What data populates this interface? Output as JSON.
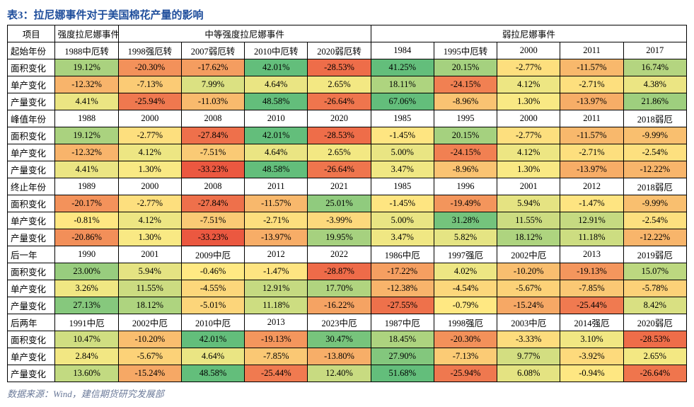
{
  "title": "表3：拉尼娜事件对于美国棉花产量的影响",
  "source": "数据来源：Wind，建信期货研究发展部",
  "header_row1": {
    "c0": "项目",
    "c1": "强度拉尼娜事件",
    "c2": "中等强度拉尼娜事件",
    "c3": "弱拉尼娜事件"
  },
  "row_labels": [
    "起始年份",
    "面积变化",
    "单产变化",
    "产量变化",
    "峰值年份",
    "面积变化",
    "单产变化",
    "产量变化",
    "终止年份",
    "面积变化",
    "单产变化",
    "产量变化",
    "后一年",
    "面积变化",
    "单产变化",
    "产量变化",
    "后两年",
    "面积变化",
    "单产变化",
    "产量变化"
  ],
  "columns": 10,
  "data": [
    [
      "1988中厄转",
      "1998强厄转",
      "2007弱厄转",
      "2010中厄转",
      "2020弱厄转",
      "1984",
      "1995中厄转",
      "2000",
      "2011",
      "2017"
    ],
    [
      "19.12%",
      "-20.30%",
      "-17.62%",
      "42.01%",
      "-28.53%",
      "41.25%",
      "20.15%",
      "-2.77%",
      "-11.57%",
      "16.74%"
    ],
    [
      "-12.32%",
      "-7.13%",
      "7.99%",
      "4.64%",
      "2.65%",
      "18.11%",
      "-24.15%",
      "4.12%",
      "-2.71%",
      "4.38%"
    ],
    [
      "4.41%",
      "-25.94%",
      "-11.03%",
      "48.58%",
      "-26.64%",
      "67.06%",
      "-8.96%",
      "1.30%",
      "-13.97%",
      "21.86%"
    ],
    [
      "1988",
      "2000",
      "2008",
      "2010",
      "2020",
      "1985",
      "1995",
      "2000",
      "2011",
      "2018弱厄"
    ],
    [
      "19.12%",
      "-2.77%",
      "-27.84%",
      "42.01%",
      "-28.53%",
      "-1.45%",
      "20.15%",
      "-2.77%",
      "-11.57%",
      "-9.99%"
    ],
    [
      "-12.32%",
      "4.12%",
      "-7.51%",
      "4.64%",
      "2.65%",
      "5.00%",
      "-24.15%",
      "4.12%",
      "-2.71%",
      "-2.54%"
    ],
    [
      "4.41%",
      "1.30%",
      "-33.23%",
      "48.58%",
      "-26.64%",
      "3.47%",
      "-8.96%",
      "1.30%",
      "-13.97%",
      "-12.22%"
    ],
    [
      "1989",
      "2000",
      "2008",
      "2011",
      "2021",
      "1985",
      "1996",
      "2001",
      "2012",
      "2018弱厄"
    ],
    [
      "-20.17%",
      "-2.77%",
      "-27.84%",
      "-11.57%",
      "25.01%",
      "-1.45%",
      "-19.49%",
      "5.94%",
      "-1.47%",
      "-9.99%"
    ],
    [
      "-0.81%",
      "4.12%",
      "-7.51%",
      "-2.71%",
      "-3.99%",
      "5.00%",
      "31.28%",
      "11.55%",
      "12.91%",
      "-2.54%"
    ],
    [
      "-20.86%",
      "1.30%",
      "-33.23%",
      "-13.97%",
      "19.95%",
      "3.47%",
      "5.82%",
      "18.12%",
      "11.18%",
      "-12.22%"
    ],
    [
      "1990",
      "2001",
      "2009中厄",
      "2012",
      "2022",
      "1986中厄",
      "1997强厄",
      "2002中厄",
      "2013",
      "2019弱厄"
    ],
    [
      "23.00%",
      "5.94%",
      "-0.46%",
      "-1.47%",
      "-28.87%",
      "-17.22%",
      "4.02%",
      "-10.20%",
      "-19.13%",
      "15.07%"
    ],
    [
      "3.26%",
      "11.55%",
      "-4.55%",
      "12.91%",
      "17.70%",
      "-12.38%",
      "-4.54%",
      "-5.67%",
      "-7.85%",
      "-5.78%"
    ],
    [
      "27.13%",
      "18.12%",
      "-5.01%",
      "11.18%",
      "-16.22%",
      "-27.55%",
      "-0.79%",
      "-15.24%",
      "-25.44%",
      "8.42%"
    ],
    [
      "1991中厄",
      "2002中厄",
      "2010中厄",
      "2013",
      "2023中厄",
      "1987中厄",
      "1998强厄",
      "2003中厄",
      "2014强厄",
      "2020弱厄"
    ],
    [
      "10.47%",
      "-10.20%",
      "42.01%",
      "-19.13%",
      "30.47%",
      "18.45%",
      "-20.30%",
      "-3.33%",
      "3.10%",
      "-28.53%"
    ],
    [
      "2.84%",
      "-5.67%",
      "4.64%",
      "-7.85%",
      "-13.80%",
      "27.90%",
      "-7.13%",
      "9.77%",
      "-3.92%",
      "2.65%"
    ],
    [
      "13.60%",
      "-15.24%",
      "48.58%",
      "-25.44%",
      "12.40%",
      "51.68%",
      "-25.94%",
      "6.08%",
      "-0.94%",
      "-26.64%"
    ]
  ],
  "heat_rows": [
    1,
    2,
    3,
    5,
    6,
    7,
    9,
    10,
    11,
    13,
    14,
    15,
    17,
    18,
    19
  ],
  "heatmap": {
    "neg_color": {
      "r": 234,
      "g": 80,
      "b": 60
    },
    "mid_color": {
      "r": 255,
      "g": 235,
      "b": 132
    },
    "pos_color": {
      "r": 99,
      "g": 190,
      "b": 123
    },
    "range": 35
  },
  "table_style": {
    "title_color": "#1f4e9c",
    "title_fontsize": 15,
    "cell_fontsize": 12.5,
    "border_color": "#000000",
    "source_color": "#6b7a99"
  }
}
